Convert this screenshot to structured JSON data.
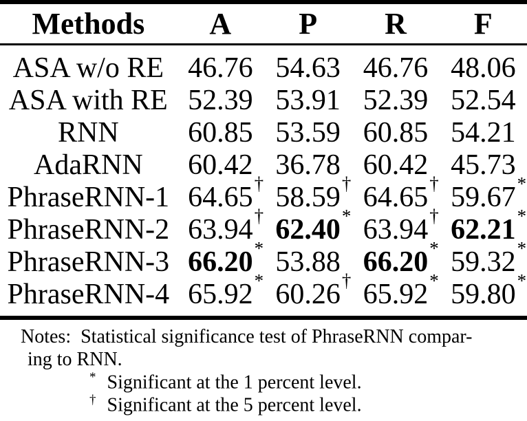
{
  "colors": {
    "text": "#000000",
    "background": "#ffffff",
    "rule": "#000000"
  },
  "table": {
    "columns": [
      "Methods",
      "A",
      "P",
      "R",
      "F"
    ],
    "rows": [
      {
        "method": "ASA w/o RE",
        "cells": [
          {
            "v": "46.76",
            "sup": "",
            "bold": false
          },
          {
            "v": "54.63",
            "sup": "",
            "bold": false
          },
          {
            "v": "46.76",
            "sup": "",
            "bold": false
          },
          {
            "v": "48.06",
            "sup": "",
            "bold": false
          }
        ]
      },
      {
        "method": "ASA with RE",
        "cells": [
          {
            "v": "52.39",
            "sup": "",
            "bold": false
          },
          {
            "v": "53.91",
            "sup": "",
            "bold": false
          },
          {
            "v": "52.39",
            "sup": "",
            "bold": false
          },
          {
            "v": "52.54",
            "sup": "",
            "bold": false
          }
        ]
      },
      {
        "method": "RNN",
        "cells": [
          {
            "v": "60.85",
            "sup": "",
            "bold": false
          },
          {
            "v": "53.59",
            "sup": "",
            "bold": false
          },
          {
            "v": "60.85",
            "sup": "",
            "bold": false
          },
          {
            "v": "54.21",
            "sup": "",
            "bold": false
          }
        ]
      },
      {
        "method": "AdaRNN",
        "cells": [
          {
            "v": "60.42",
            "sup": "",
            "bold": false
          },
          {
            "v": "36.78",
            "sup": "",
            "bold": false
          },
          {
            "v": "60.42",
            "sup": "",
            "bold": false
          },
          {
            "v": "45.73",
            "sup": "",
            "bold": false
          }
        ]
      },
      {
        "method": "PhraseRNN-1",
        "cells": [
          {
            "v": "64.65",
            "sup": "†",
            "bold": false
          },
          {
            "v": "58.59",
            "sup": "†",
            "bold": false
          },
          {
            "v": "64.65",
            "sup": "†",
            "bold": false
          },
          {
            "v": "59.67",
            "sup": "*",
            "bold": false
          }
        ]
      },
      {
        "method": "PhraseRNN-2",
        "cells": [
          {
            "v": "63.94",
            "sup": "†",
            "bold": false
          },
          {
            "v": "62.40",
            "sup": "*",
            "bold": true
          },
          {
            "v": "63.94",
            "sup": "†",
            "bold": false
          },
          {
            "v": "62.21",
            "sup": "*",
            "bold": true
          }
        ]
      },
      {
        "method": "PhraseRNN-3",
        "cells": [
          {
            "v": "66.20",
            "sup": "*",
            "bold": true
          },
          {
            "v": "53.88",
            "sup": "",
            "bold": false
          },
          {
            "v": "66.20",
            "sup": "*",
            "bold": true
          },
          {
            "v": "59.32",
            "sup": "*",
            "bold": false
          }
        ]
      },
      {
        "method": "PhraseRNN-4",
        "cells": [
          {
            "v": "65.92",
            "sup": "*",
            "bold": false
          },
          {
            "v": "60.26",
            "sup": "†",
            "bold": false
          },
          {
            "v": "65.92",
            "sup": "*",
            "bold": false
          },
          {
            "v": "59.80",
            "sup": "*",
            "bold": false
          }
        ]
      }
    ]
  },
  "notes": {
    "label": "Notes:",
    "line1": "Statistical significance test of PhraseRNN compar-",
    "line2": "ing to RNN.",
    "footnotes": [
      {
        "sym": "*",
        "text": "Significant at the 1 percent level."
      },
      {
        "sym": "†",
        "text": "Significant at the 5 percent level."
      }
    ]
  }
}
